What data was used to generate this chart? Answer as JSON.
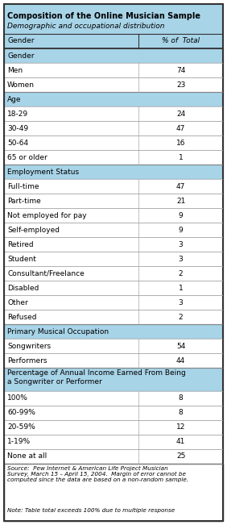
{
  "title": "Composition of the Online Musician Sample",
  "subtitle": "Demographic and occupational distribution",
  "col1_header": "Gender",
  "col2_header": "% of  Total",
  "section_bg": "#a8d4e8",
  "row_bg": "#ffffff",
  "col_split": 0.615,
  "sections": [
    {
      "label": "Gender",
      "rows": [
        {
          "label": "Men",
          "value": "74"
        },
        {
          "label": "Women",
          "value": "23"
        }
      ]
    },
    {
      "label": "Age",
      "rows": [
        {
          "label": "18-29",
          "value": "24"
        },
        {
          "label": "30-49",
          "value": "47"
        },
        {
          "label": "50-64",
          "value": "16"
        },
        {
          "label": "65 or older",
          "value": "1"
        }
      ]
    },
    {
      "label": "Employment Status",
      "rows": [
        {
          "label": "Full-time",
          "value": "47"
        },
        {
          "label": "Part-time",
          "value": "21"
        },
        {
          "label": "Not employed for pay",
          "value": "9"
        },
        {
          "label": "Self-employed",
          "value": "9"
        },
        {
          "label": "Retired",
          "value": "3"
        },
        {
          "label": "Student",
          "value": "3"
        },
        {
          "label": "Consultant/Freelance",
          "value": "2"
        },
        {
          "label": "Disabled",
          "value": "1"
        },
        {
          "label": "Other",
          "value": "3"
        },
        {
          "label": "Refused",
          "value": "2"
        }
      ]
    },
    {
      "label": "Primary Musical Occupation",
      "rows": [
        {
          "label": "Songwriters",
          "value": "54"
        },
        {
          "label": "Performers",
          "value": "44"
        }
      ]
    },
    {
      "label": "Percentage of Annual Income Earned From Being\na Songwriter or Performer",
      "rows": [
        {
          "label": "100%",
          "value": "8"
        },
        {
          "label": "60-99%",
          "value": "8"
        },
        {
          "label": "20-59%",
          "value": "12"
        },
        {
          "label": "1-19%",
          "value": "41"
        },
        {
          "label": "None at all",
          "value": "25"
        }
      ]
    }
  ],
  "footer_source": "Source:  Pew Internet & American Life Project Musician\nSurvey, March 15 – April 15, 2004.  Margin of error cannot be\ncomputed since the data are based on a non-random sample.",
  "footer_note": "Note: Table total exceeds 100% due to multiple response"
}
